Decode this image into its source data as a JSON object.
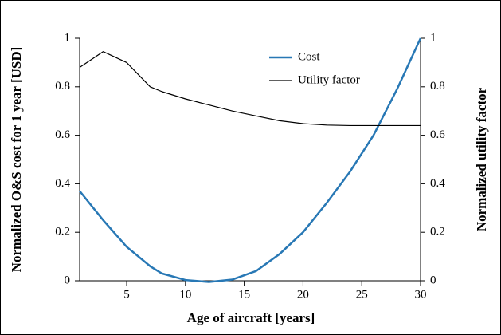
{
  "chart_data": {
    "type": "line",
    "xlabel": "Age of aircraft [years]",
    "ylabel": "Normalized O&S cost for 1 year [USD]",
    "y2label": "Normalized utility factor",
    "x": [
      1,
      3,
      5,
      7,
      8,
      10,
      12,
      14,
      16,
      18,
      20,
      22,
      24,
      26,
      28,
      30
    ],
    "series": [
      {
        "name": "Cost",
        "color": "#2878b5",
        "values": [
          0.37,
          0.25,
          0.14,
          0.06,
          0.03,
          0.003,
          -0.005,
          0.005,
          0.04,
          0.11,
          0.2,
          0.32,
          0.45,
          0.6,
          0.79,
          1.0
        ]
      },
      {
        "name": "Utility factor",
        "color": "#000000",
        "axis": "y2",
        "values": [
          0.88,
          0.945,
          0.9,
          0.8,
          0.78,
          0.75,
          0.725,
          0.7,
          0.68,
          0.66,
          0.648,
          0.642,
          0.64,
          0.64,
          0.64,
          0.64
        ]
      }
    ],
    "xlim": [
      1,
      30
    ],
    "xticks": [
      5,
      10,
      15,
      20,
      25,
      30
    ],
    "ylim": [
      0,
      1
    ],
    "yticks": [
      0,
      0.2,
      0.4,
      0.6,
      0.8,
      1
    ],
    "y2lim": [
      0,
      1
    ],
    "y2ticks": [
      0,
      0.2,
      0.4,
      0.6,
      0.8,
      1
    ],
    "legend": "upper center"
  }
}
